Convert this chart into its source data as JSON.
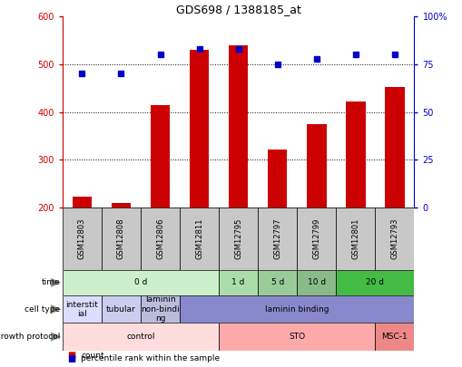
{
  "title": "GDS698 / 1388185_at",
  "samples": [
    "GSM12803",
    "GSM12808",
    "GSM12806",
    "GSM12811",
    "GSM12795",
    "GSM12797",
    "GSM12799",
    "GSM12801",
    "GSM12793"
  ],
  "counts": [
    222,
    210,
    415,
    530,
    540,
    322,
    375,
    422,
    452
  ],
  "percentiles": [
    70,
    70,
    80,
    83,
    83,
    75,
    78,
    80,
    80
  ],
  "bar_color": "#cc0000",
  "dot_color": "#0000cc",
  "time_groups": [
    {
      "label": "0 d",
      "start": 0,
      "end": 4,
      "color": "#ccf0cc"
    },
    {
      "label": "1 d",
      "start": 4,
      "end": 5,
      "color": "#aaddaa"
    },
    {
      "label": "5 d",
      "start": 5,
      "end": 6,
      "color": "#99cc99"
    },
    {
      "label": "10 d",
      "start": 6,
      "end": 7,
      "color": "#88bb88"
    },
    {
      "label": "20 d",
      "start": 7,
      "end": 9,
      "color": "#44bb44"
    }
  ],
  "cell_type_groups": [
    {
      "label": "interstit\nial",
      "start": 0,
      "end": 1,
      "color": "#ddddff"
    },
    {
      "label": "tubular",
      "start": 1,
      "end": 2,
      "color": "#ccccee"
    },
    {
      "label": "laminin\nnon-bindi\nng",
      "start": 2,
      "end": 3,
      "color": "#bbbbdd"
    },
    {
      "label": "laminin binding",
      "start": 3,
      "end": 9,
      "color": "#8888cc"
    }
  ],
  "growth_protocol_groups": [
    {
      "label": "control",
      "start": 0,
      "end": 4,
      "color": "#ffdddd"
    },
    {
      "label": "STO",
      "start": 4,
      "end": 8,
      "color": "#ffaaaa"
    },
    {
      "label": "MSC-1",
      "start": 8,
      "end": 9,
      "color": "#ee8888"
    }
  ],
  "sample_bg_color": "#c8c8c8",
  "legend_items": [
    {
      "label": "count",
      "color": "#cc0000"
    },
    {
      "label": "percentile rank within the sample",
      "color": "#0000cc"
    }
  ]
}
